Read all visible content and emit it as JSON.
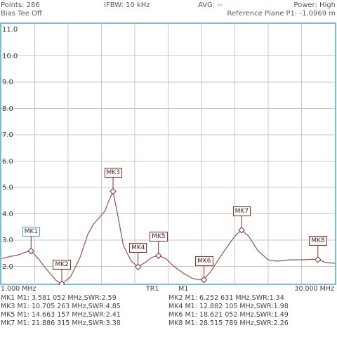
{
  "header": {
    "points": "Points: 286",
    "ifbw": "IFBW: 10 kHz",
    "avg": "AVG: --",
    "power": "Power: High",
    "bias_tee": "Bias Tee Off",
    "reference_plane": "Reference Plane P1: -1.0969 m"
  },
  "y_axis": {
    "tick_labels": [
      "11.0",
      "10.0",
      "9.0",
      "8.0",
      "7.0",
      "6.0",
      "5.0",
      "4.0",
      "3.0",
      "2.0"
    ]
  },
  "x_axis": {
    "start_label": "1.000 MHz",
    "stop_label": "30.000 MHz",
    "trace_label": "TR1",
    "measurement_label": "M1"
  },
  "colors": {
    "trace": "#a0504a",
    "grid": "#c8c8c8",
    "plot_border": "#4aa8c8",
    "text": "#5a5a5a"
  },
  "chart_data": {
    "type": "line",
    "title": "",
    "xlabel": "",
    "ylabel": "",
    "xlim": [
      1.0,
      30.0
    ],
    "ylim": [
      1.0,
      11.3
    ],
    "grid": true,
    "series": [
      {
        "name": "",
        "x": [
          1.0,
          2.0,
          2.6,
          3.0,
          3.58,
          4.2,
          5.0,
          5.8,
          6.25,
          7.0,
          7.8,
          8.5,
          9.0,
          9.5,
          10.0,
          10.3,
          10.7,
          11.1,
          11.6,
          12.3,
          12.88,
          13.5,
          14.1,
          14.66,
          15.3,
          16.0,
          16.8,
          17.6,
          18.2,
          18.62,
          19.2,
          20.0,
          20.8,
          21.4,
          21.89,
          22.5,
          23.3,
          24.2,
          25.0,
          26.0,
          27.0,
          28.0,
          28.52,
          29.2,
          30.0
        ],
        "y": [
          2.3,
          2.4,
          2.45,
          2.53,
          2.59,
          2.3,
          1.85,
          1.45,
          1.34,
          1.6,
          2.3,
          3.2,
          3.6,
          3.85,
          4.1,
          4.45,
          4.85,
          4.0,
          2.8,
          2.2,
          1.98,
          2.15,
          2.35,
          2.41,
          2.3,
          2.0,
          1.75,
          1.55,
          1.49,
          1.52,
          1.8,
          2.35,
          2.85,
          3.2,
          3.38,
          3.15,
          2.6,
          2.25,
          2.2,
          2.25,
          2.25,
          2.27,
          2.26,
          2.15,
          2.12
        ]
      }
    ],
    "markers": [
      {
        "label": "MK1",
        "x": 3.58,
        "y": 2.59
      },
      {
        "label": "MK2",
        "x": 6.25,
        "y": 1.34
      },
      {
        "label": "MK3",
        "x": 10.71,
        "y": 4.85
      },
      {
        "label": "MK4",
        "x": 12.88,
        "y": 1.98
      },
      {
        "label": "MK5",
        "x": 14.66,
        "y": 2.41
      },
      {
        "label": "MK6",
        "x": 18.62,
        "y": 1.49
      },
      {
        "label": "MK7",
        "x": 21.89,
        "y": 3.38
      },
      {
        "label": "MK8",
        "x": 28.52,
        "y": 2.26
      }
    ]
  },
  "marker_readouts": [
    {
      "text": "MK1 M1:  3.581 052 MHz,SWR:2.59"
    },
    {
      "text": "MK2 M1:  6.252 631 MHz,SWR:1.34"
    },
    {
      "text": "MK3 M1:  10.705 263 MHz,SWR:4.85"
    },
    {
      "text": "MK4 M1:  12.882 105 MHz,SWR:1.98"
    },
    {
      "text": "MK5 M1:  14.663 157 MHz,SWR:2.41"
    },
    {
      "text": "MK6 M1:  18.621 052 MHz,SWR:1.49"
    },
    {
      "text": "MK7 M1:  21.886 315 MHz,SWR:3.38"
    },
    {
      "text": "MK8 M1:  28.515 789 MHz,SWR:2.26"
    }
  ]
}
